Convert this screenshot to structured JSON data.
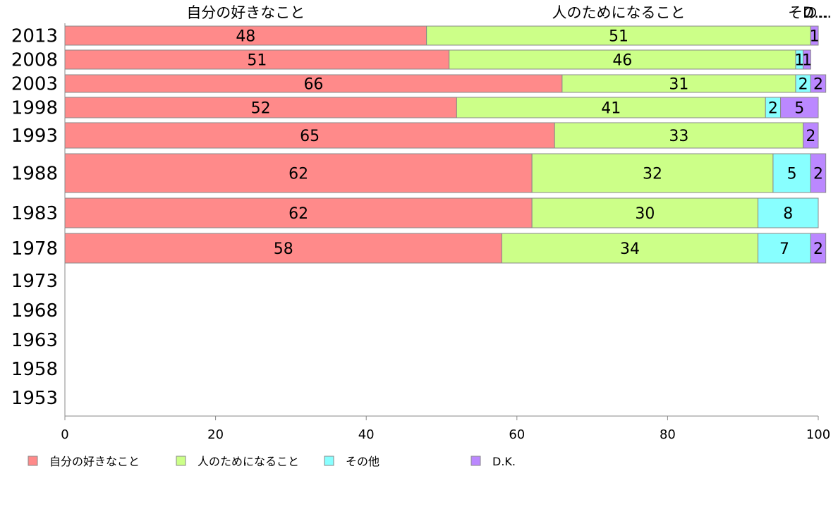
{
  "chart_data": {
    "type": "bar",
    "orientation": "horizontal",
    "stacked": true,
    "xlim": [
      0,
      100
    ],
    "x_ticks": [
      0,
      20,
      40,
      60,
      80,
      100
    ],
    "categories": [
      "2013",
      "2008",
      "2003",
      "1998",
      "1993",
      "1988",
      "1983",
      "1978",
      "1973",
      "1968",
      "1963",
      "1958",
      "1953"
    ],
    "series": [
      {
        "name": "自分の好きなこと",
        "color": "#FF8A8A",
        "values": [
          48,
          51,
          66,
          52,
          65,
          62,
          62,
          58,
          null,
          null,
          null,
          null,
          null
        ]
      },
      {
        "name": "人のためになること",
        "color": "#CCFF88",
        "values": [
          51,
          46,
          31,
          41,
          33,
          32,
          30,
          34,
          null,
          null,
          null,
          null,
          null
        ]
      },
      {
        "name": "その他",
        "color": "#88FFFF",
        "values": [
          0,
          1,
          2,
          2,
          0,
          5,
          8,
          7,
          null,
          null,
          null,
          null,
          null
        ]
      },
      {
        "name": "D.K.",
        "color": "#BB88FF",
        "values": [
          1,
          1,
          2,
          5,
          2,
          2,
          0,
          2,
          null,
          null,
          null,
          null,
          null
        ]
      }
    ],
    "top_labels": [
      "自分の好きなこと",
      "人のためになること",
      "その...",
      "D..."
    ],
    "legend": {
      "placement": "bottom-left",
      "entries": [
        "自分の好きなこと",
        "人のためになること",
        "その他",
        "D.K."
      ]
    },
    "grid": false
  }
}
